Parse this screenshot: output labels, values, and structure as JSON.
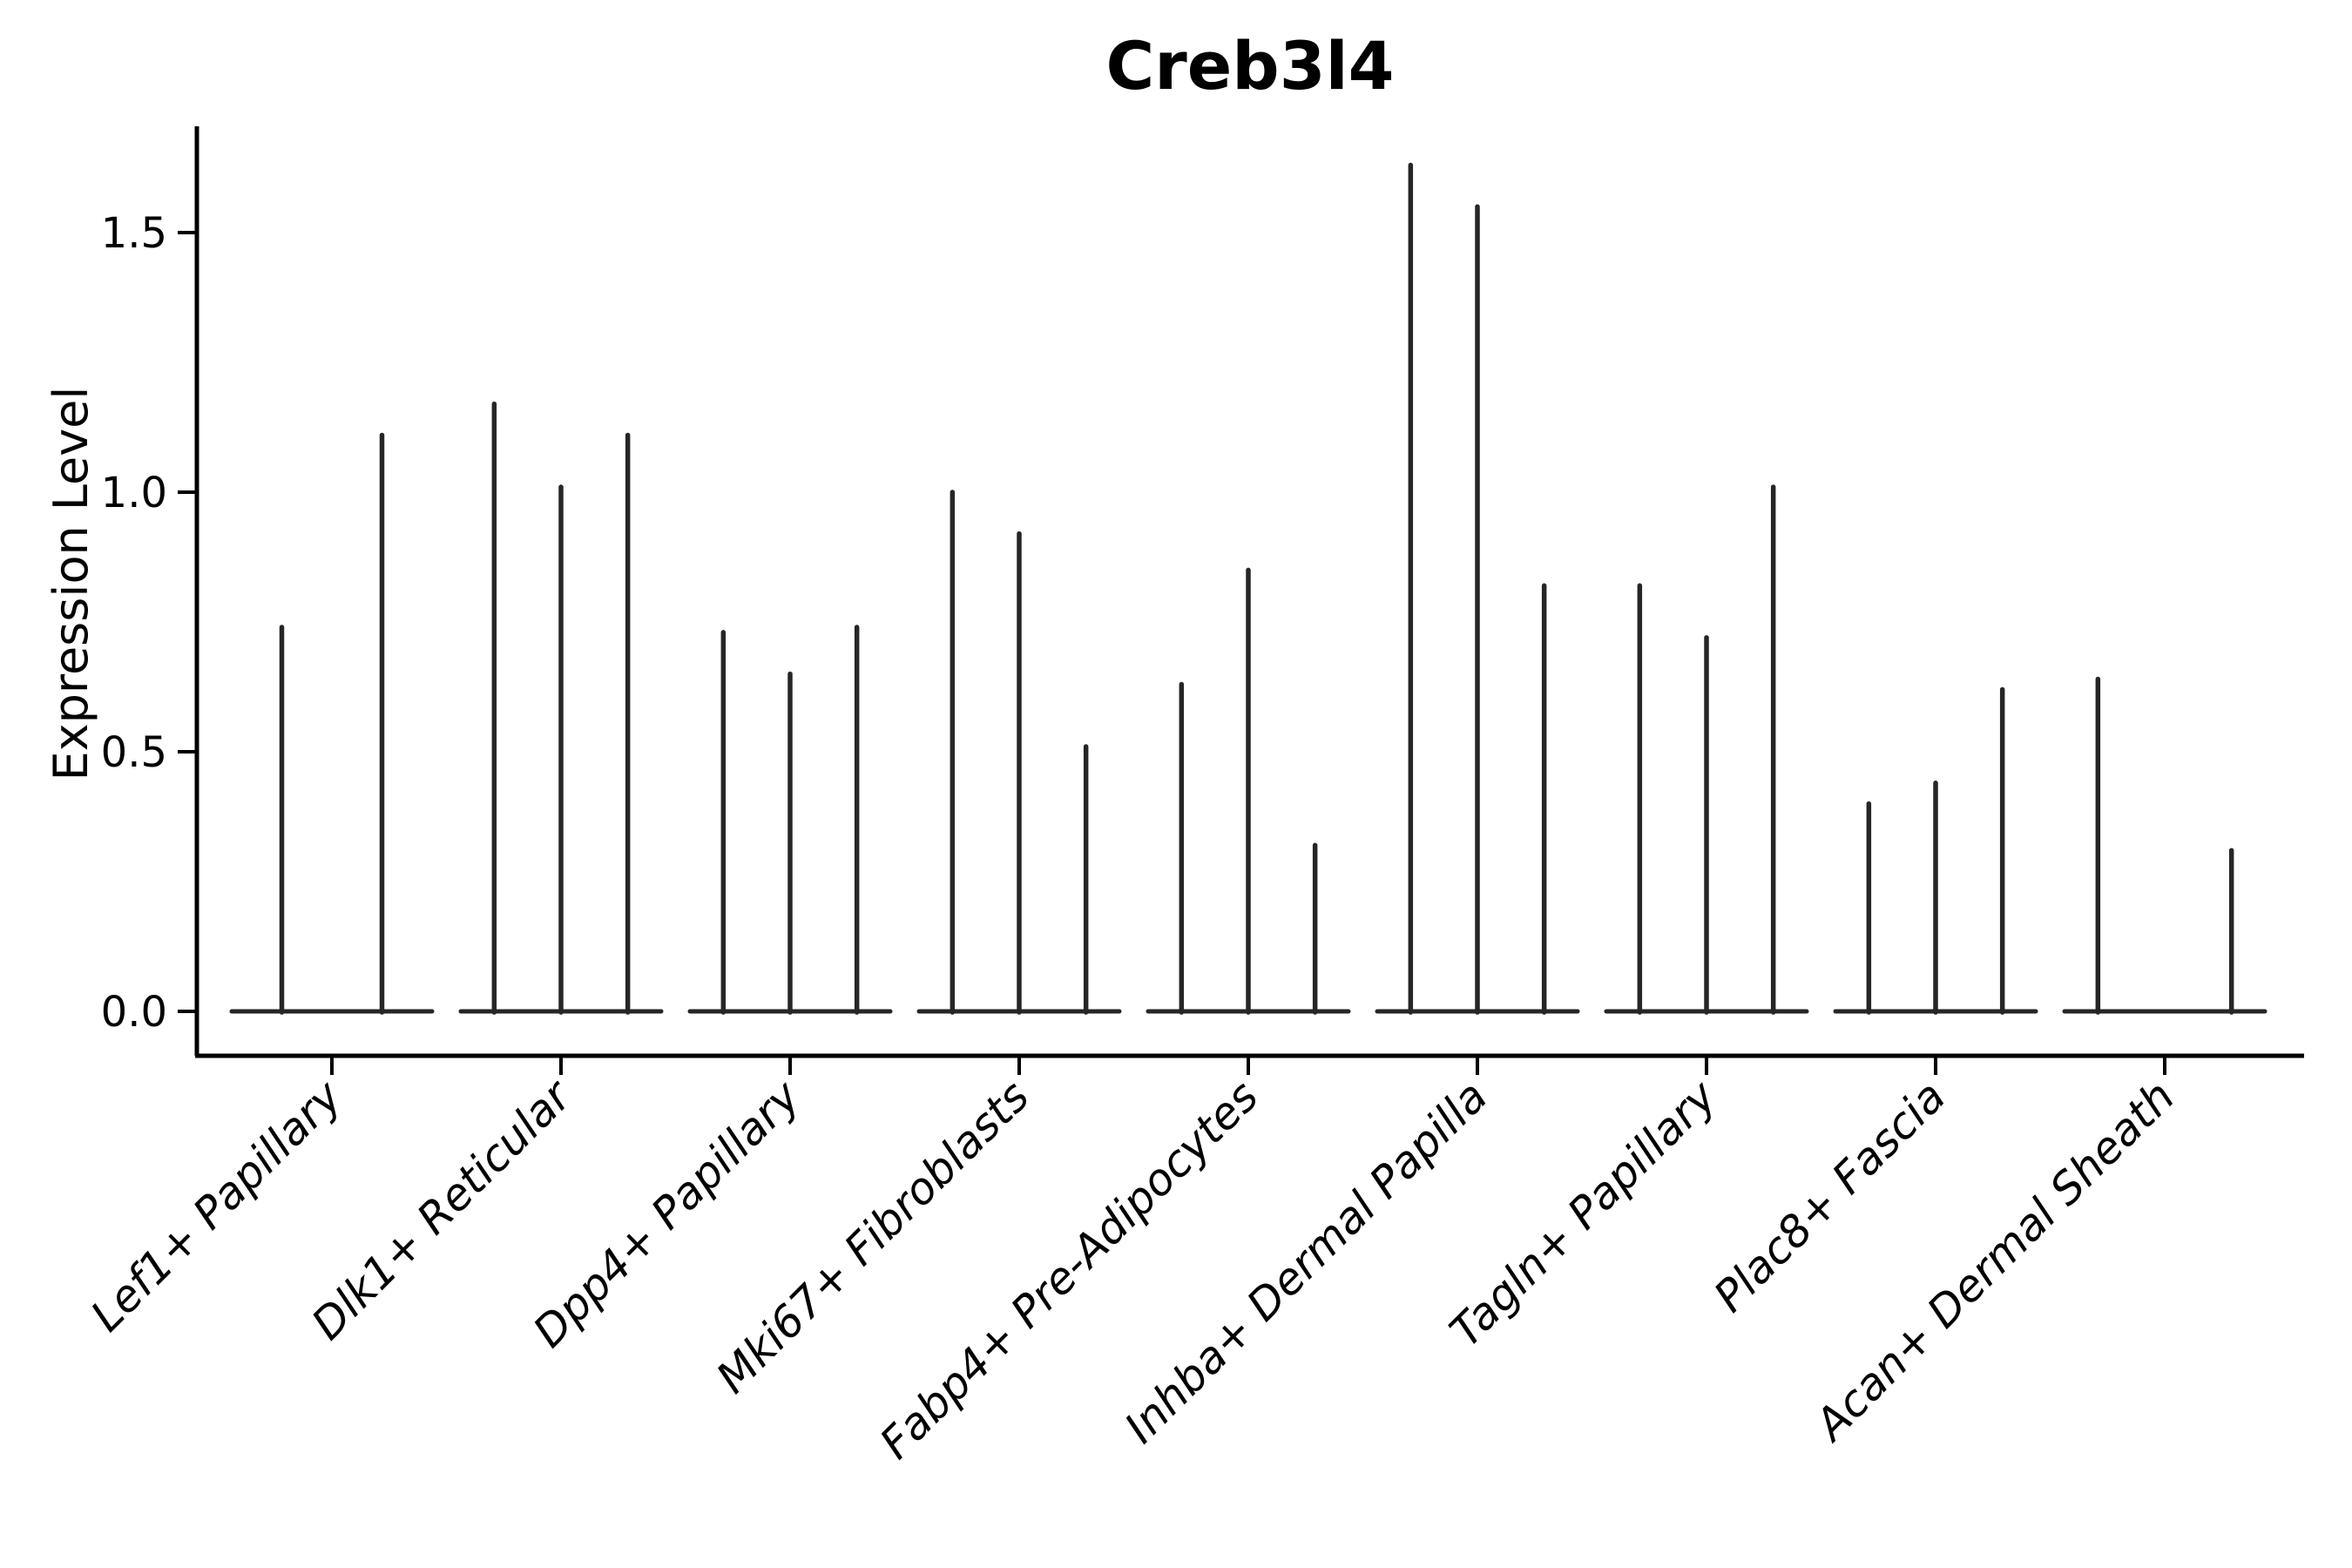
{
  "figure": {
    "title": "Creb3l4",
    "background_color": "#ffffff",
    "axis_color": "#000000",
    "spike_color": "#262626"
  },
  "chart_data": {
    "type": "violin",
    "title": "Creb3l4",
    "xlabel": "",
    "ylabel": "Expression Level",
    "ylim": [
      0,
      1.7
    ],
    "yticks": [
      0.0,
      0.5,
      1.0,
      1.5
    ],
    "ytick_labels": [
      "0.0",
      "0.5",
      "1.0",
      "1.5"
    ],
    "grid": false,
    "legend": "none",
    "note": "Each category shows very thin violins: a flat base at expression 0 plus one vertical spike per violin reaching its maximum expression value; a zero maximum means a flat violin with no spike.",
    "categories": [
      "Lef1+ Papillary",
      "Dlk1+ Reticular",
      "Dpp4+ Papillary",
      "Mki67+ Fibroblasts",
      "Fabp4+ Pre-Adipocytes",
      "Inhba+ Dermal Papilla",
      "Tagln+ Papillary",
      "Plac8+ Fascia",
      "Acan+ Dermal Sheath"
    ],
    "groups": [
      {
        "category": "Lef1+ Papillary",
        "spike_maxima": [
          0.74,
          1.11
        ]
      },
      {
        "category": "Dlk1+ Reticular",
        "spike_maxima": [
          1.17,
          1.01,
          1.11
        ]
      },
      {
        "category": "Dpp4+ Papillary",
        "spike_maxima": [
          0.73,
          0.65,
          0.74
        ]
      },
      {
        "category": "Mki67+ Fibroblasts",
        "spike_maxima": [
          1.0,
          0.92,
          0.51
        ]
      },
      {
        "category": "Fabp4+ Pre-Adipocytes",
        "spike_maxima": [
          0.63,
          0.85,
          0.32
        ]
      },
      {
        "category": "Inhba+ Dermal Papilla",
        "spike_maxima": [
          1.63,
          1.55,
          0.82
        ]
      },
      {
        "category": "Tagln+ Papillary",
        "spike_maxima": [
          0.82,
          0.72,
          1.01
        ]
      },
      {
        "category": "Plac8+ Fascia",
        "spike_maxima": [
          0.4,
          0.44,
          0.62
        ]
      },
      {
        "category": "Acan+ Dermal Sheath",
        "spike_maxima": [
          0.64,
          0.0,
          0.31
        ]
      }
    ]
  }
}
